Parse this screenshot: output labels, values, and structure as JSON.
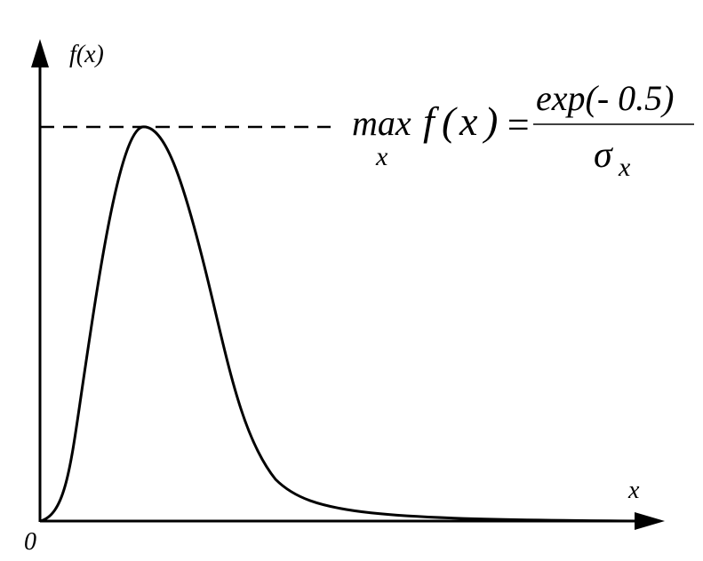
{
  "diagram": {
    "y_axis_label": "f(x)",
    "x_axis_label": "x",
    "origin_label": "0",
    "formula": {
      "lhs_operator": "max",
      "lhs_subscript": "x",
      "lhs_function": "f",
      "lhs_open": "(",
      "lhs_arg": "x",
      "lhs_close": ")",
      "equals": "=",
      "numerator": "exp(- 0.5)",
      "denominator_symbol": "σ",
      "denominator_subscript": "x"
    },
    "line_color": "#000000",
    "background_color": "#ffffff"
  }
}
